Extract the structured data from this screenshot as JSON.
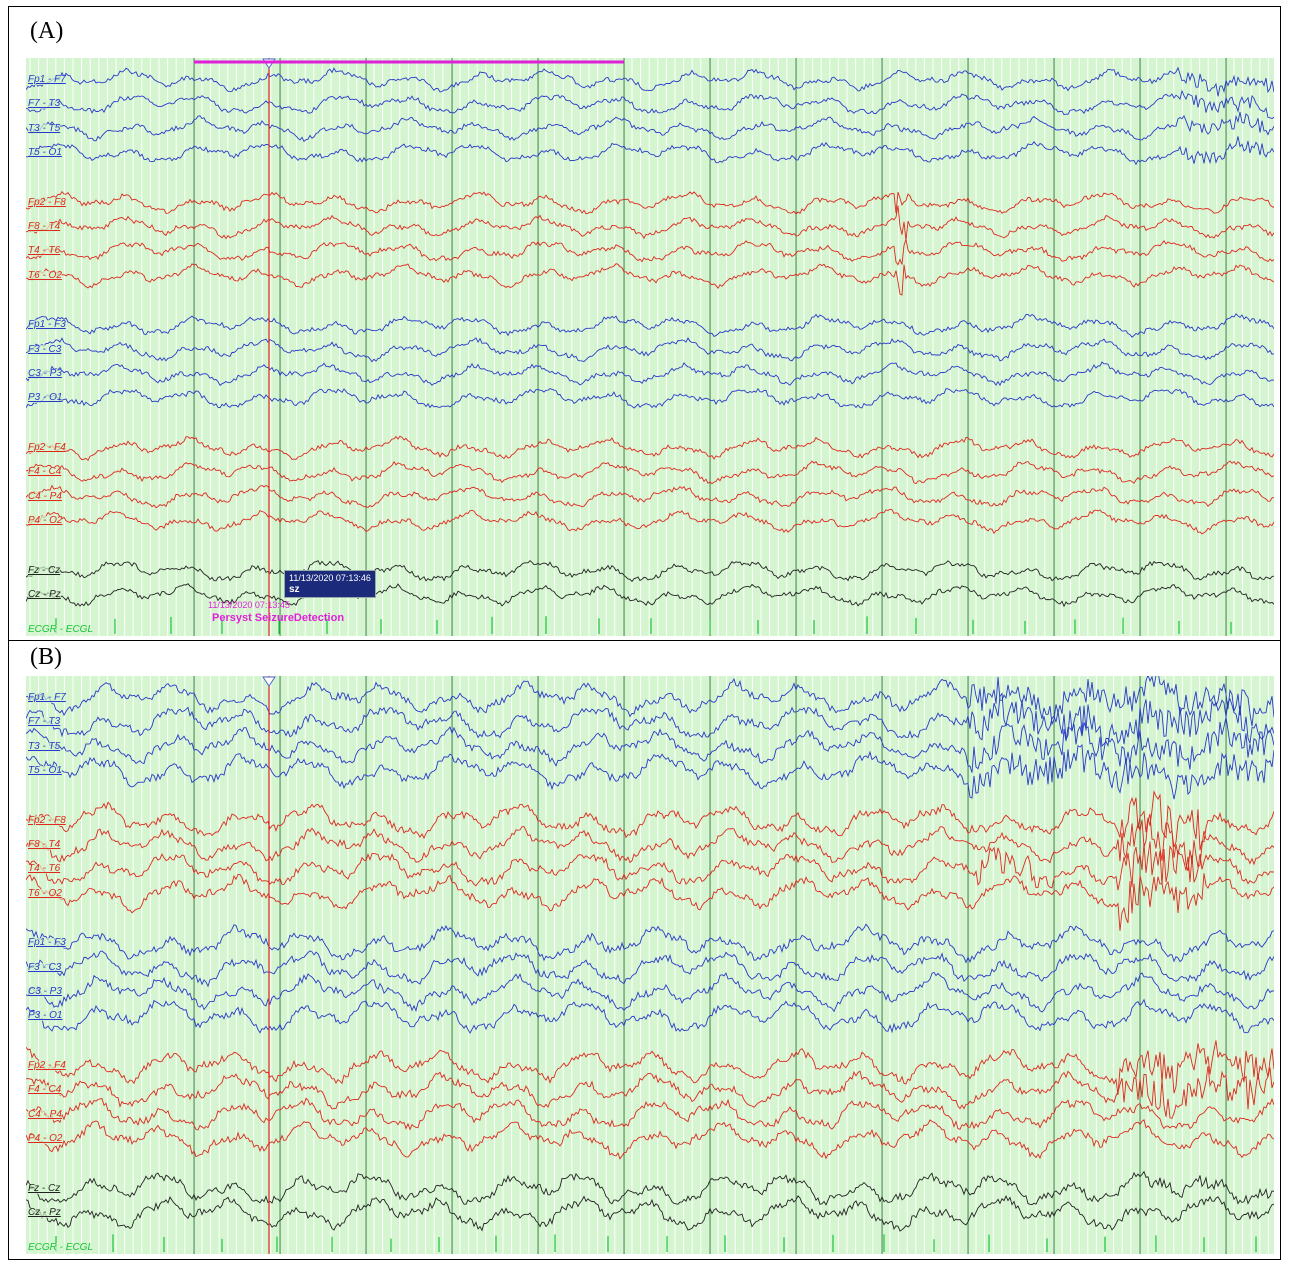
{
  "panels": [
    {
      "label": "(A)",
      "groups": [
        {
          "color": "#2a3acb",
          "cls": "ch-blue",
          "channels": [
            "Fp1 - F7",
            "F7 - T3",
            "T3 - T5",
            "T5 - O1"
          ]
        },
        {
          "color": "#e0281f",
          "cls": "ch-red",
          "channels": [
            "Fp2 - F8",
            "F8 - T4",
            "T4 - T6",
            "T6 - O2"
          ]
        },
        {
          "color": "#2a3acb",
          "cls": "ch-blue",
          "channels": [
            "Fp1 - F3",
            "F3 - C3",
            "C3 - P3",
            "P3 - O1"
          ]
        },
        {
          "color": "#e0281f",
          "cls": "ch-red",
          "channels": [
            "Fp2 - F4",
            "F4 - C4",
            "C4 - P4",
            "P4 - O2"
          ]
        },
        {
          "color": "#222222",
          "cls": "ch-black",
          "channels": [
            "Fz - Cz",
            "Cz - Pz"
          ]
        }
      ],
      "ecg_label": "ECGR - ECGL",
      "annotation_box": {
        "timestamp": "11/13/2020 07:13:46",
        "text": "sz"
      },
      "detection": {
        "timestamp": "11/13/2020 07:13:45",
        "text": "Persyst SeizureDetection"
      }
    },
    {
      "label": "(B)",
      "groups": [
        {
          "color": "#2a3acb",
          "cls": "ch-blue",
          "channels": [
            "Fp1 - F7",
            "F7 - T3",
            "T3 - T5",
            "T5 - O1"
          ]
        },
        {
          "color": "#e0281f",
          "cls": "ch-red",
          "channels": [
            "Fp2 - F8",
            "F8 - T4",
            "T4 - T6",
            "T6 - O2"
          ]
        },
        {
          "color": "#2a3acb",
          "cls": "ch-blue",
          "channels": [
            "Fp1 - F3",
            "F3 - C3",
            "C3 - P3",
            "P3 - O1"
          ]
        },
        {
          "color": "#e0281f",
          "cls": "ch-red",
          "channels": [
            "Fp2 - F4",
            "F4 - C4",
            "C4 - P4",
            "P4 - O2"
          ]
        },
        {
          "color": "#222222",
          "cls": "ch-black",
          "channels": [
            "Fz - Cz",
            "Cz - Pz"
          ]
        }
      ],
      "ecg_label": "ECGR - ECGL"
    }
  ],
  "colors": {
    "background": "#d4f5cf",
    "grid_minor": "#ffffff",
    "grid_major": "#2d7a3a",
    "marker": "#e0281f",
    "detection_bar": "#e020d8",
    "ecg": "#19c43a"
  }
}
